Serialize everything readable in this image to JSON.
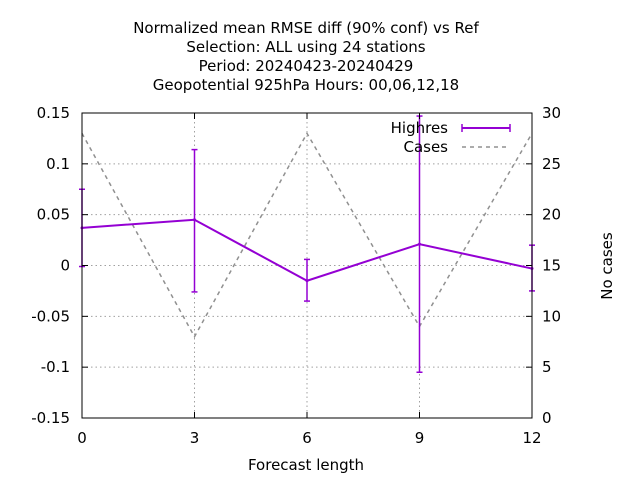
{
  "chart_data": {
    "type": "line",
    "title_lines": [
      "Normalized mean RMSE diff (90% conf) vs Ref",
      "Selection: ALL using    24 stations",
      "Period: 20240423-20240429",
      "Geopotential 925hPa   Hours:  00,06,12,18"
    ],
    "xlabel": "Forecast length",
    "ylabel_right": "No cases",
    "x": [
      0,
      3,
      6,
      9,
      12
    ],
    "xlim": [
      0,
      12
    ],
    "ylim": [
      -0.15,
      0.15
    ],
    "y2lim": [
      0,
      30
    ],
    "xticks": [
      "0",
      "3",
      "6",
      "9",
      "12"
    ],
    "yticks": [
      "-0.15",
      "-0.1",
      "-0.05",
      "0",
      "0.05",
      "0.1",
      "0.15"
    ],
    "y2ticks": [
      "0",
      "5",
      "10",
      "15",
      "20",
      "25",
      "30"
    ],
    "grid": true,
    "legend_position": "top-right",
    "series": [
      {
        "name": "Highres",
        "color": "#9400d3",
        "style": "solid-errorbars",
        "values": [
          0.037,
          0.045,
          -0.015,
          0.021,
          -0.003
        ],
        "err_low": [
          -0.001,
          -0.026,
          -0.035,
          -0.105,
          -0.025
        ],
        "err_high": [
          0.075,
          0.114,
          0.006,
          0.147,
          0.02
        ]
      },
      {
        "name": "Cases",
        "color": "#909090",
        "style": "dashed",
        "axis": "right",
        "values": [
          28,
          8,
          28,
          9,
          28
        ]
      }
    ]
  }
}
